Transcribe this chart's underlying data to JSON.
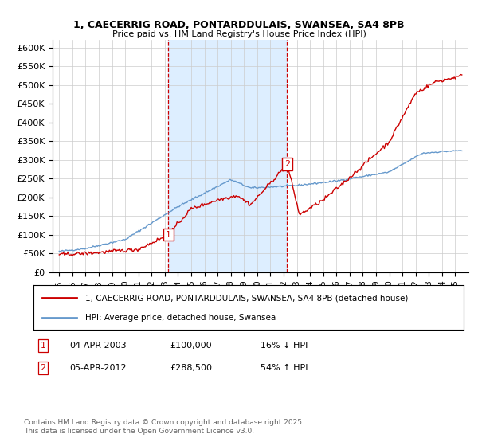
{
  "title1": "1, CAECERRIG ROAD, PONTARDDULAIS, SWANSEA, SA4 8PB",
  "title2": "Price paid vs. HM Land Registry's House Price Index (HPI)",
  "ylim": [
    0,
    620000
  ],
  "yticks": [
    0,
    50000,
    100000,
    150000,
    200000,
    250000,
    300000,
    350000,
    400000,
    450000,
    500000,
    550000,
    600000
  ],
  "ytick_labels": [
    "£0",
    "£50K",
    "£100K",
    "£150K",
    "£200K",
    "£250K",
    "£300K",
    "£350K",
    "£400K",
    "£450K",
    "£500K",
    "£550K",
    "£600K"
  ],
  "sale1_date": 2003.27,
  "sale1_price": 100000,
  "sale1_label": "1",
  "sale2_date": 2012.27,
  "sale2_price": 288500,
  "sale2_label": "2",
  "property_color": "#cc0000",
  "hpi_color": "#6699cc",
  "shade_color": "#ddeeff",
  "legend_property": "1, CAECERRIG ROAD, PONTARDDULAIS, SWANSEA, SA4 8PB (detached house)",
  "legend_hpi": "HPI: Average price, detached house, Swansea",
  "footnote": "Contains HM Land Registry data © Crown copyright and database right 2025.\nThis data is licensed under the Open Government Licence v3.0.",
  "title_fontsize": 9,
  "axis_fontsize": 8
}
